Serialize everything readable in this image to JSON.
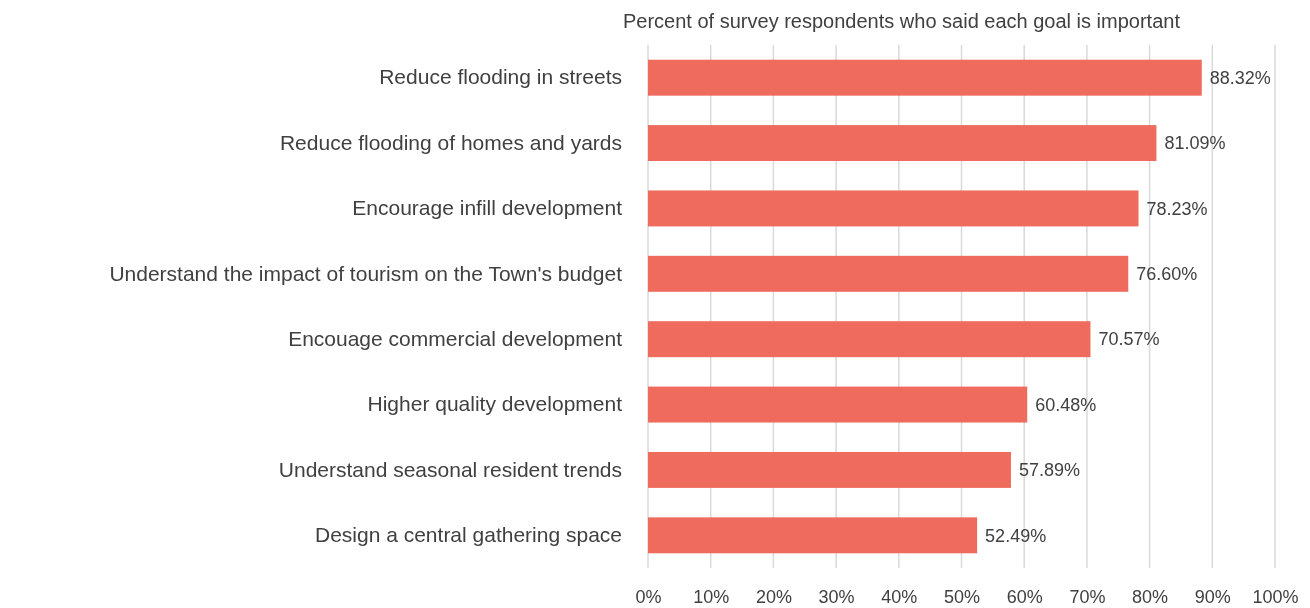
{
  "chart_data": {
    "type": "bar",
    "orientation": "horizontal",
    "title": "Percent of survey respondents who said each goal is important",
    "categories": [
      "Reduce flooding in streets",
      "Reduce flooding of homes and yards",
      "Encourage infill development",
      "Understand the impact of tourism on the Town's budget",
      "Encouage commercial development",
      "Higher quality development",
      "Understand seasonal resident trends",
      "Design a central gathering space"
    ],
    "values": [
      88.32,
      81.09,
      78.23,
      76.6,
      70.57,
      60.48,
      57.89,
      52.49
    ],
    "value_labels": [
      "88.32%",
      "81.09%",
      "78.23%",
      "76.60%",
      "70.57%",
      "60.48%",
      "57.89%",
      "52.49%"
    ],
    "color": "#ee6b5e",
    "xlim": [
      0,
      100
    ],
    "xticks": [
      {
        "value": 0,
        "label": "0%"
      },
      {
        "value": 10,
        "label": "10%"
      },
      {
        "value": 20,
        "label": "20%"
      },
      {
        "value": 30,
        "label": "30%"
      },
      {
        "value": 40,
        "label": "40%"
      },
      {
        "value": 50,
        "label": "50%"
      },
      {
        "value": 60,
        "label": "60%"
      },
      {
        "value": 70,
        "label": "70%"
      },
      {
        "value": 80,
        "label": "80%"
      },
      {
        "value": 90,
        "label": "90%"
      },
      {
        "value": 100,
        "label": "100%"
      }
    ],
    "grid": "x"
  }
}
